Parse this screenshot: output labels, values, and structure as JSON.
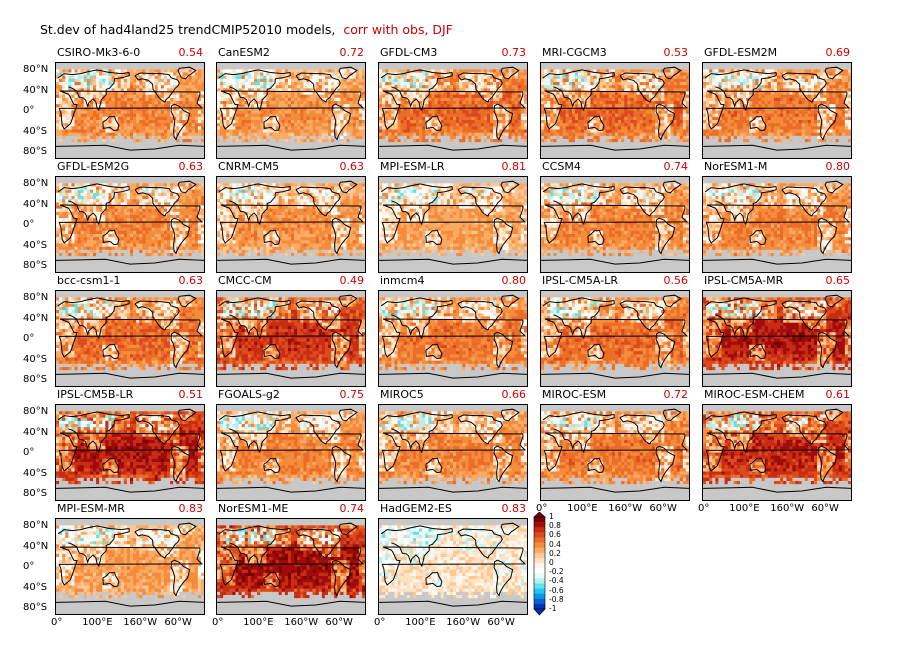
{
  "title": {
    "main": "St.dev of had4land25 trendCMIP52010 models,",
    "subtitle": "corr with obs, DJF"
  },
  "axes": {
    "lat_ticks": [
      "80°N",
      "40°N",
      "0°",
      "40°S",
      "80°S"
    ],
    "lon_ticks": [
      "0°",
      "100°E",
      "160°W",
      "60°W"
    ]
  },
  "colorbar": {
    "labels": [
      "1",
      "0.8",
      "0.6",
      "0.4",
      "0.2",
      "0",
      "-0.2",
      "-0.4",
      "-0.6",
      "-0.8",
      "-1"
    ],
    "colors": [
      "#7a0000",
      "#a00c0c",
      "#c82d14",
      "#dc4b1e",
      "#eb6e28",
      "#f58c3c",
      "#fbaa64",
      "#fdc894",
      "#fde3c4",
      "#fff5eb",
      "#ffffff",
      "#e6fafa",
      "#b4f0f0",
      "#64e1eb",
      "#1ec8f0",
      "#0a96e6",
      "#0a64d2",
      "#0032b4"
    ]
  },
  "chart_data": {
    "type": "heatmap",
    "title": "St.dev of had4land25 trendCMIP52010 models, corr with obs, DJF",
    "xlabel": "",
    "ylabel": "",
    "x_ticks": [
      "0°",
      "100°E",
      "160°W",
      "60°W"
    ],
    "y_ticks": [
      "80°N",
      "40°N",
      "0°",
      "40°S",
      "80°S"
    ],
    "colorscale_range": [
      -1,
      1
    ],
    "panels": [
      {
        "model": "CSIRO-Mk3-6-0",
        "corr": "0.54",
        "intensity": 0.45
      },
      {
        "model": "CanESM2",
        "corr": "0.72",
        "intensity": 0.4
      },
      {
        "model": "GFDL-CM3",
        "corr": "0.73",
        "intensity": 0.55
      },
      {
        "model": "MRI-CGCM3",
        "corr": "0.53",
        "intensity": 0.55
      },
      {
        "model": "GFDL-ESM2M",
        "corr": "0.69",
        "intensity": 0.5
      },
      {
        "model": "GFDL-ESM2G",
        "corr": "0.63",
        "intensity": 0.45
      },
      {
        "model": "CNRM-CM5",
        "corr": "0.63",
        "intensity": 0.4
      },
      {
        "model": "MPI-ESM-LR",
        "corr": "0.81",
        "intensity": 0.35
      },
      {
        "model": "CCSM4",
        "corr": "0.74",
        "intensity": 0.45
      },
      {
        "model": "NorESM1-M",
        "corr": "0.80",
        "intensity": 0.45
      },
      {
        "model": "bcc-csm1-1",
        "corr": "0.63",
        "intensity": 0.55
      },
      {
        "model": "CMCC-CM",
        "corr": "0.49",
        "intensity": 0.75
      },
      {
        "model": "inmcm4",
        "corr": "0.80",
        "intensity": 0.5
      },
      {
        "model": "IPSL-CM5A-LR",
        "corr": "0.56",
        "intensity": 0.55
      },
      {
        "model": "IPSL-CM5A-MR",
        "corr": "0.65",
        "intensity": 0.85
      },
      {
        "model": "IPSL-CM5B-LR",
        "corr": "0.51",
        "intensity": 0.85
      },
      {
        "model": "FGOALS-g2",
        "corr": "0.75",
        "intensity": 0.45
      },
      {
        "model": "MIROC5",
        "corr": "0.66",
        "intensity": 0.45
      },
      {
        "model": "MIROC-ESM",
        "corr": "0.72",
        "intensity": 0.5
      },
      {
        "model": "MIROC-ESM-CHEM",
        "corr": "0.61",
        "intensity": 0.8
      },
      {
        "model": "MPI-ESM-MR",
        "corr": "0.83",
        "intensity": 0.35
      },
      {
        "model": "NorESM1-ME",
        "corr": "0.74",
        "intensity": 0.9
      },
      {
        "model": "HadGEM2-ES",
        "corr": "0.83",
        "intensity": 0.05
      }
    ]
  }
}
